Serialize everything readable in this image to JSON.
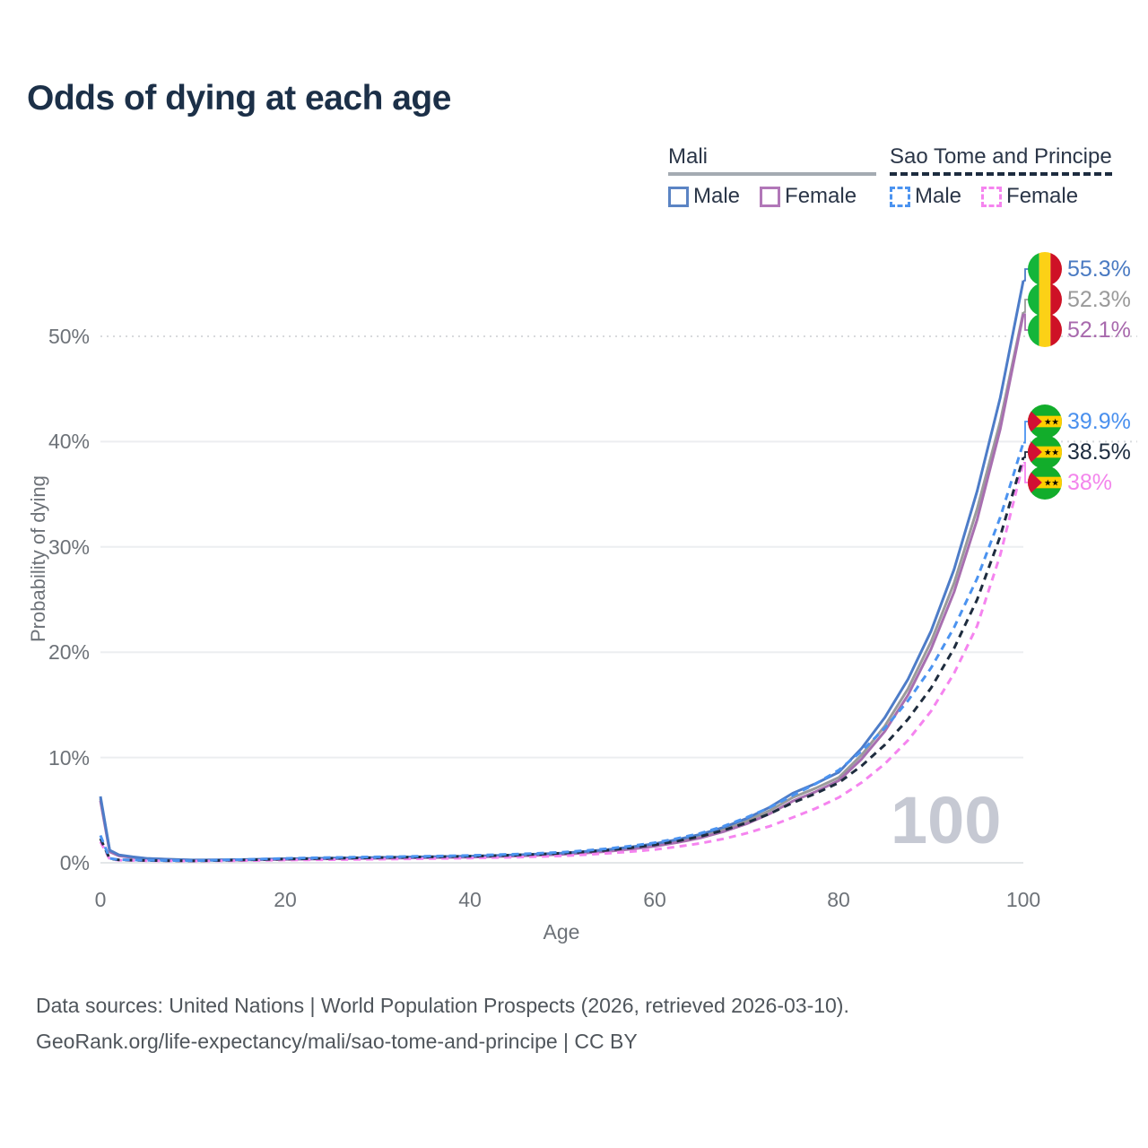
{
  "title": "Odds of dying at each age",
  "legend": {
    "mali": {
      "label": "Mali",
      "male": "Male",
      "female": "Female"
    },
    "sao_tome": {
      "label": "Sao Tome and Principe",
      "male": "Male",
      "female": "Female"
    }
  },
  "watermark": "100",
  "end_labels": [
    {
      "text": "55.3%",
      "color": "#4a7ac2",
      "flag": "mali"
    },
    {
      "text": "52.3%",
      "color": "#9a9a9a",
      "flag": "mali"
    },
    {
      "text": "52.1%",
      "color": "#a869ad",
      "flag": "mali"
    },
    {
      "text": "39.9%",
      "color": "#4a90ee",
      "flag": "sao-tome"
    },
    {
      "text": "38.5%",
      "color": "#1d2c3f",
      "flag": "sao-tome"
    },
    {
      "text": "38%",
      "color": "#f385ec",
      "flag": "sao-tome"
    }
  ],
  "footer": {
    "line1": "Data sources: United Nations | World Population Prospects (2026, retrieved 2026-03-10).",
    "line2": "GeoRank.org/life-expectancy/mali/sao-tome-and-principe | CC BY"
  },
  "colors": {
    "title_text": "#1c3048",
    "axis_text": "#6d7278",
    "gridline": "#eceef0",
    "gridline_dotted": "#d8dadd",
    "baseline": "#e3e6e8",
    "watermark": "#c6c9d3",
    "mali_male": "#4d7cc8",
    "mali_both": "#9b9b9b",
    "mali_female": "#a86fb0",
    "sao_tome_male": "#4b93f0",
    "sao_tome_both": "#1e2c3e",
    "sao_tome_female": "#f584ef"
  },
  "chart_data": {
    "type": "line",
    "title": "Odds of dying at each age",
    "xlabel": "Age",
    "ylabel": "Probability of dying",
    "xlim": [
      0,
      100
    ],
    "ylim_percent": [
      0,
      55.3
    ],
    "grid": "horizontal",
    "yticks": [
      "0%",
      "10%",
      "20%",
      "30%",
      "40%",
      "50%"
    ],
    "ytick_percent": [
      0,
      10,
      20,
      30,
      40,
      50
    ],
    "xticks": [
      "0",
      "20",
      "40",
      "60",
      "80",
      "100"
    ],
    "xtick_values": [
      0,
      20,
      40,
      60,
      80,
      100
    ],
    "x_ages": [
      0,
      1,
      2,
      5,
      10,
      15,
      20,
      25,
      30,
      35,
      40,
      45,
      50,
      55,
      60,
      65,
      70,
      75,
      80,
      85,
      90,
      95,
      100
    ],
    "values_unit": "percent probability of dying",
    "series": [
      {
        "name": "Mali Male",
        "country": "Mali",
        "sex": "Male",
        "style": "solid",
        "color": "#4d7cc8",
        "end_label": "55.3%",
        "values": [
          6.3,
          1.2,
          0.75,
          0.42,
          0.26,
          0.3,
          0.38,
          0.44,
          0.5,
          0.56,
          0.63,
          0.74,
          0.92,
          1.25,
          1.8,
          2.7,
          4.2,
          6.6,
          8.6,
          13.8,
          22.0,
          35.3,
          55.3
        ]
      },
      {
        "name": "Mali Both sexes",
        "country": "Mali",
        "sex": "Both",
        "style": "solid",
        "color": "#9b9b9b",
        "end_label": "52.3%",
        "values": [
          6.1,
          1.12,
          0.7,
          0.4,
          0.25,
          0.28,
          0.35,
          0.41,
          0.46,
          0.52,
          0.58,
          0.69,
          0.86,
          1.16,
          1.68,
          2.52,
          3.95,
          6.2,
          8.1,
          13.0,
          21.0,
          33.6,
          52.3
        ]
      },
      {
        "name": "Mali Female",
        "country": "Mali",
        "sex": "Female",
        "style": "solid",
        "color": "#a86fb0",
        "end_label": "52.1%",
        "values": [
          5.9,
          1.05,
          0.66,
          0.38,
          0.24,
          0.26,
          0.32,
          0.38,
          0.43,
          0.48,
          0.54,
          0.64,
          0.8,
          1.08,
          1.57,
          2.36,
          3.7,
          5.85,
          7.8,
          12.5,
          20.3,
          32.6,
          52.1
        ]
      },
      {
        "name": "Sao Tome and Principe Male",
        "country": "Sao Tome and Principe",
        "sex": "Male",
        "style": "dashed",
        "color": "#4b93f0",
        "end_label": "39.9%",
        "values": [
          2.6,
          0.42,
          0.3,
          0.24,
          0.2,
          0.3,
          0.42,
          0.5,
          0.56,
          0.62,
          0.7,
          0.82,
          1.0,
          1.35,
          1.9,
          2.8,
          4.3,
          6.4,
          8.8,
          12.8,
          18.5,
          27.0,
          39.9
        ]
      },
      {
        "name": "Sao Tome and Principe Both sexes",
        "country": "Sao Tome and Principe",
        "sex": "Both",
        "style": "dashed",
        "color": "#1e2c3e",
        "end_label": "38.5%",
        "values": [
          2.3,
          0.38,
          0.28,
          0.22,
          0.18,
          0.26,
          0.36,
          0.43,
          0.49,
          0.55,
          0.62,
          0.73,
          0.9,
          1.2,
          1.7,
          2.5,
          3.8,
          5.7,
          7.6,
          11.2,
          16.6,
          25.0,
          38.5
        ]
      },
      {
        "name": "Sao Tome and Principe Female",
        "country": "Sao Tome and Principe",
        "sex": "Female",
        "style": "dashed",
        "color": "#f584ef",
        "end_label": "38%",
        "values": [
          2.0,
          0.34,
          0.25,
          0.2,
          0.16,
          0.2,
          0.26,
          0.3,
          0.34,
          0.39,
          0.45,
          0.53,
          0.66,
          0.9,
          1.25,
          1.85,
          2.8,
          4.3,
          6.2,
          9.4,
          14.4,
          22.5,
          38.0
        ]
      }
    ]
  }
}
